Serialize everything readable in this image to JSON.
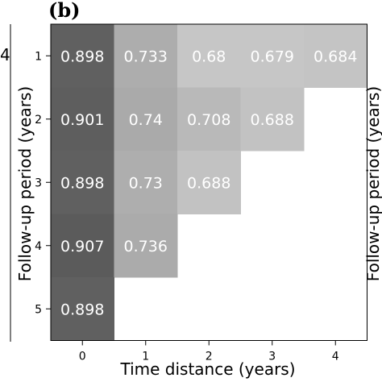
{
  "panel_label": "(b)",
  "partial_left_value": "4",
  "chart_data": {
    "type": "heatmap",
    "title": "",
    "xlabel": "Time distance (years)",
    "ylabel": "Follow-up period (years)",
    "right_ylabel": "Follow-up period (years)",
    "x": [
      0,
      1,
      2,
      3,
      4
    ],
    "y": [
      1,
      2,
      3,
      4,
      5
    ],
    "x_tick_labels": [
      "0",
      "1",
      "2",
      "3",
      "4"
    ],
    "y_tick_labels": [
      "1",
      "2",
      "3",
      "4",
      "5"
    ],
    "colormap": "greys",
    "value_range": [
      0.6,
      1.0
    ],
    "grid": false,
    "rows": [
      {
        "y": 1,
        "values": [
          0.898,
          0.733,
          0.68,
          0.679,
          0.684
        ],
        "labels": [
          "0.898",
          "0.733",
          "0.68",
          "0.679",
          "0.684"
        ]
      },
      {
        "y": 2,
        "values": [
          0.901,
          0.74,
          0.708,
          0.688
        ],
        "labels": [
          "0.901",
          "0.74",
          "0.708",
          "0.688"
        ]
      },
      {
        "y": 3,
        "values": [
          0.898,
          0.73,
          0.688
        ],
        "labels": [
          "0.898",
          "0.73",
          "0.688"
        ]
      },
      {
        "y": 4,
        "values": [
          0.907,
          0.736
        ],
        "labels": [
          "0.907",
          "0.736"
        ]
      },
      {
        "y": 5,
        "values": [
          0.898
        ],
        "labels": [
          "0.898"
        ]
      }
    ]
  }
}
